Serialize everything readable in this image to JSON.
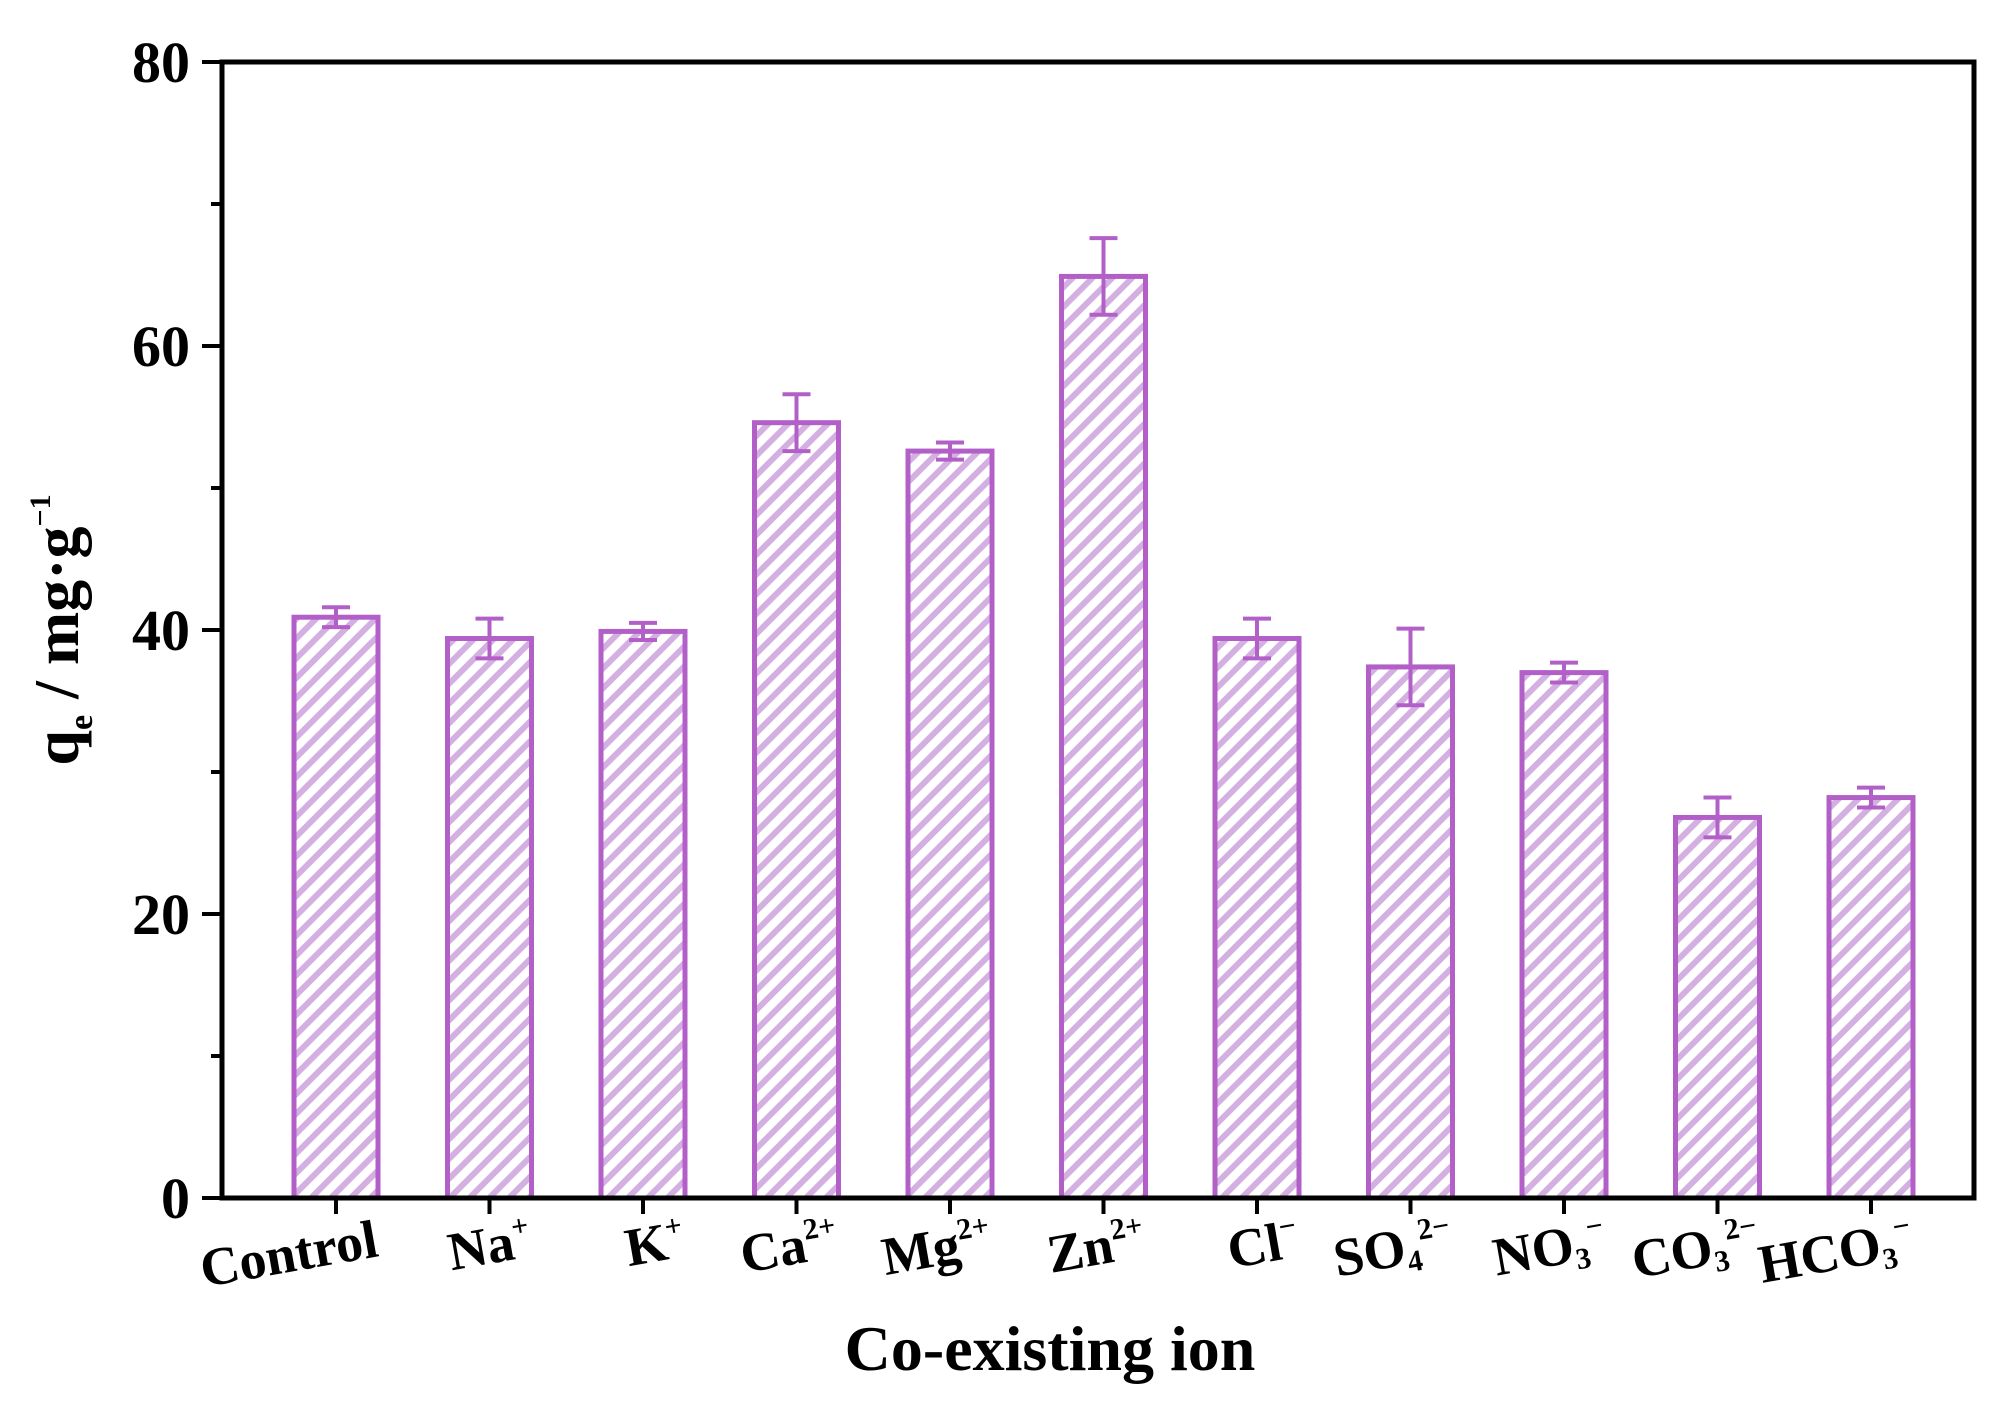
{
  "chart_data": {
    "type": "bar",
    "xlabel": "Co-existing ion",
    "ylabel": {
      "main": "q",
      "sub": "e",
      "rest": " / mg·g",
      "sup": "−1"
    },
    "ylim": [
      0,
      80
    ],
    "yticks": [
      0,
      20,
      40,
      60,
      80
    ],
    "categories": [
      {
        "base": "Control",
        "sub": "",
        "sup": ""
      },
      {
        "base": "Na",
        "sub": "",
        "sup": "+"
      },
      {
        "base": "K",
        "sub": "",
        "sup": "+"
      },
      {
        "base": "Ca",
        "sub": "",
        "sup": "2+"
      },
      {
        "base": "Mg",
        "sub": "",
        "sup": "2+"
      },
      {
        "base": "Zn",
        "sub": "",
        "sup": "2+"
      },
      {
        "base": "Cl",
        "sub": "",
        "sup": "−"
      },
      {
        "base": "SO",
        "sub": "4",
        "sup": "2−"
      },
      {
        "base": "NO",
        "sub": "3",
        "sup": "−"
      },
      {
        "base": "CO",
        "sub": "3",
        "sup": "2−"
      },
      {
        "base": "HCO",
        "sub": "3",
        "sup": "−"
      }
    ],
    "values": [
      40.9,
      39.4,
      39.9,
      54.6,
      52.6,
      64.9,
      39.4,
      37.4,
      37.0,
      26.8,
      28.2
    ],
    "errors": [
      0.7,
      1.4,
      0.6,
      2.0,
      0.6,
      2.7,
      1.4,
      2.7,
      0.7,
      1.4,
      0.7
    ],
    "bar_color": "#b260c8",
    "hatch_color": "#d4b0e2",
    "grid": false,
    "legend": "none"
  }
}
